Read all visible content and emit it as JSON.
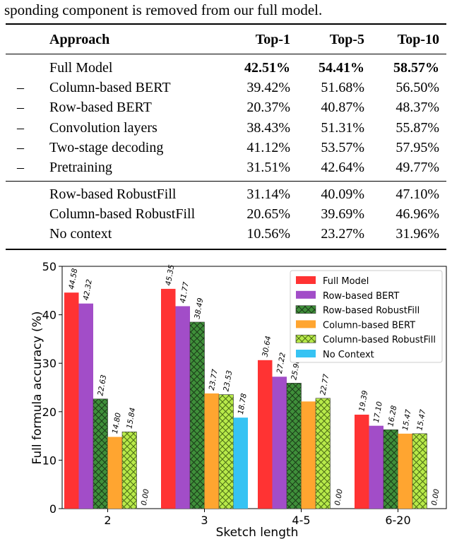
{
  "caption": "sponding component is removed from our full model.",
  "table": {
    "headers": [
      "Approach",
      "Top-1",
      "Top-5",
      "Top-10"
    ],
    "rows_group1": [
      {
        "prefix": "",
        "name": "Full Model",
        "top1": "42.51%",
        "top5": "54.41%",
        "top10": "58.57%",
        "bold": true
      },
      {
        "prefix": "–",
        "name": "Column-based BERT",
        "top1": "39.42%",
        "top5": "51.68%",
        "top10": "56.50%"
      },
      {
        "prefix": "–",
        "name": "Row-based BERT",
        "top1": "20.37%",
        "top5": "40.87%",
        "top10": "48.37%"
      },
      {
        "prefix": "–",
        "name": "Convolution layers",
        "top1": "38.43%",
        "top5": "51.31%",
        "top10": "55.87%"
      },
      {
        "prefix": "–",
        "name": "Two-stage decoding",
        "top1": "41.12%",
        "top5": "53.57%",
        "top10": "57.95%"
      },
      {
        "prefix": "–",
        "name": "Pretraining",
        "top1": "31.51%",
        "top5": "42.64%",
        "top10": "49.77%"
      }
    ],
    "rows_group2": [
      {
        "prefix": "",
        "name": "Row-based RobustFill",
        "top1": "31.14%",
        "top5": "40.09%",
        "top10": "47.10%"
      },
      {
        "prefix": "",
        "name": "Column-based RobustFill",
        "top1": "20.65%",
        "top5": "39.69%",
        "top10": "46.96%"
      },
      {
        "prefix": "",
        "name": "No context",
        "top1": "10.56%",
        "top5": "23.27%",
        "top10": "31.96%"
      }
    ]
  },
  "chart_data": {
    "type": "bar",
    "xlabel": "Sketch length",
    "ylabel": "Full formula accuracy (%)",
    "ylim": [
      0,
      50
    ],
    "yticks": [
      "0",
      "10",
      "20",
      "30",
      "40",
      "50"
    ],
    "categories": [
      "2",
      "3",
      "4-5",
      "6-20"
    ],
    "legend_position": "top-right",
    "series": [
      {
        "name": "Full Model",
        "color": "#ff3333",
        "hatch": "none",
        "values": [
          44.58,
          45.35,
          30.64,
          19.39
        ],
        "labels": [
          "44.58",
          "45.35",
          "30.64",
          "19.39"
        ]
      },
      {
        "name": "Row-based BERT",
        "color": "#a24dc8",
        "hatch": "none",
        "values": [
          42.32,
          41.77,
          27.22,
          17.1
        ],
        "labels": [
          "42.32",
          "41.77",
          "27.22",
          "17.10"
        ]
      },
      {
        "name": "Row-based RobustFill",
        "color": "#3f8f3a",
        "hatch": "cross",
        "values": [
          22.63,
          38.49,
          25.9,
          16.28
        ],
        "labels": [
          "22.63",
          "38.49",
          "25.90",
          "16.28"
        ]
      },
      {
        "name": "Column-based BERT",
        "color": "#ffa530",
        "hatch": "none",
        "values": [
          14.8,
          23.77,
          22.11,
          15.47
        ],
        "labels": [
          "14.80",
          "23.77",
          "",
          "15.47"
        ]
      },
      {
        "name": "Column-based RobustFill",
        "color": "#b8ea4a",
        "hatch": "cross",
        "values": [
          15.84,
          23.53,
          22.77,
          15.47
        ],
        "labels": [
          "15.84",
          "23.53",
          "22.77",
          "15.47"
        ]
      },
      {
        "name": "No Context",
        "color": "#36c3f3",
        "hatch": "none",
        "values": [
          0,
          18.78,
          0,
          0
        ],
        "labels": [
          "0.00",
          "18.78",
          "0.00",
          "0.00"
        ]
      }
    ]
  }
}
